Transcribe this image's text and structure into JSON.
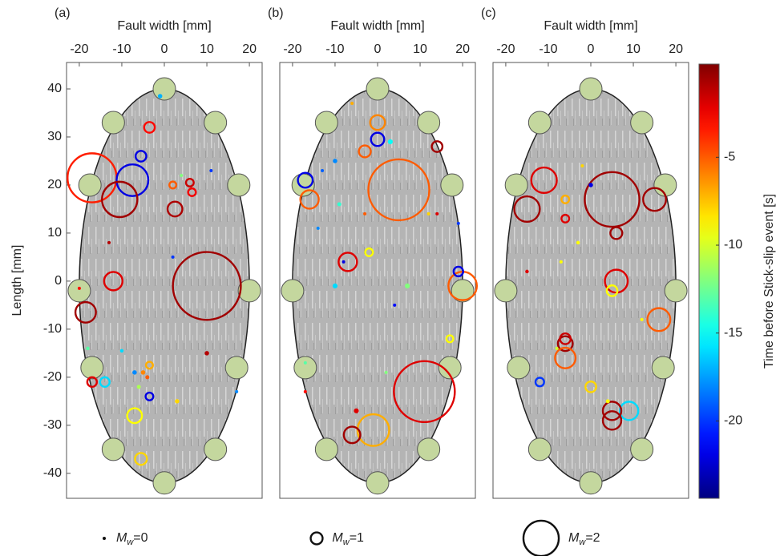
{
  "chart_data": [
    {
      "type": "scatter",
      "title": "(a)",
      "xlabel": "Fault width [mm]",
      "ylabel": "Length [mm]",
      "xlim": [
        -23,
        23
      ],
      "ylim": [
        -45.2,
        45.5
      ],
      "xticks": [
        -20,
        -10,
        0,
        10,
        20
      ],
      "yticks": [
        40,
        30,
        20,
        10,
        0,
        -10,
        -20,
        -30,
        -40
      ],
      "x": [
        -17,
        -7.5,
        -10.5,
        10,
        -12,
        -18.5,
        2.5,
        -3.5,
        -5.5,
        -7,
        -5.5,
        -17,
        -14,
        6,
        6.5,
        -3.5,
        -3.5,
        2,
        10,
        -1,
        -7,
        -5,
        3,
        -20,
        -18,
        -10,
        4,
        11,
        -6,
        -4,
        17,
        -13,
        2
      ],
      "values": [
        21.5,
        21,
        17,
        -1,
        0,
        -6.5,
        15,
        32,
        26,
        -28,
        -37,
        -21,
        -21,
        20.5,
        18.5,
        -24,
        -17.5,
        20,
        -15,
        38.5,
        -19,
        -19,
        -25,
        -1.5,
        -14,
        -14.5,
        22,
        23,
        -22,
        -20,
        -23,
        8,
        5
      ],
      "magnitude": [
        2.3,
        1.9,
        2.0,
        2.6,
        1.4,
        1.5,
        1.2,
        0.9,
        0.9,
        1.2,
        1.0,
        0.8,
        0.8,
        0.6,
        0.6,
        0.6,
        0.5,
        0.5,
        0.3,
        0.3,
        0.3,
        0.3,
        0.3,
        0,
        0.1,
        0.1,
        0,
        0,
        0.2,
        0.2,
        0,
        0,
        0
      ],
      "time": [
        -3.5,
        -22,
        -0.5,
        -0.5,
        -2,
        -0.5,
        -0.8,
        -3,
        -22,
        -9,
        -8,
        -2,
        -16,
        -1.5,
        -2.5,
        -22,
        -7,
        -5,
        -1,
        -17,
        -18,
        -6,
        -8,
        -3,
        -13,
        -16,
        -12,
        -20,
        -11,
        -5,
        -18,
        -1,
        -20
      ]
    },
    {
      "type": "scatter",
      "title": "(b)",
      "xlabel": "Fault width [mm]",
      "xlim": [
        -23,
        23
      ],
      "ylim": [
        -45.2,
        45.5
      ],
      "xticks": [
        -20,
        -10,
        0,
        10,
        20
      ],
      "x": [
        5,
        11,
        -16,
        -17,
        0,
        0,
        -3,
        14,
        -7,
        -2,
        20,
        19,
        7,
        -1,
        -6,
        17,
        -5,
        -10,
        3,
        -10,
        -9,
        14,
        12,
        -3,
        19,
        -14,
        -8,
        4,
        2,
        -17,
        -17,
        -13,
        -6
      ],
      "values": [
        19,
        -23,
        17,
        21,
        33,
        29.5,
        27,
        28,
        4,
        6,
        -1,
        2,
        -1,
        -31,
        -32,
        -12,
        -27,
        -1,
        29,
        25,
        16,
        14,
        14,
        14,
        12,
        11,
        4,
        -5,
        -19,
        -17,
        -23,
        23,
        37
      ],
      "magnitude": [
        2.5,
        2.5,
        1.4,
        1.2,
        1.2,
        1.1,
        1.0,
        0.9,
        1.4,
        0.6,
        1.8,
        0.8,
        0.4,
        1.9,
        1.3,
        0.5,
        0.4,
        0.4,
        0.4,
        0.3,
        0.2,
        0,
        0,
        0,
        0,
        0,
        0,
        0,
        0,
        0,
        0,
        0,
        0
      ],
      "time": [
        -5,
        -2,
        -5,
        -22,
        -6,
        -22,
        -5,
        -0.5,
        -2,
        -9,
        -5,
        -22,
        -12,
        -7,
        -0.5,
        -9,
        -2,
        -16,
        -15,
        -18,
        -14,
        -2,
        -8,
        -5,
        -20,
        -18,
        -22,
        -21,
        -12,
        -13,
        -3,
        -19,
        -7
      ]
    },
    {
      "type": "scatter",
      "title": "(c)",
      "xlabel": "Fault width [mm]",
      "xlim": [
        -23,
        23
      ],
      "ylim": [
        -45.2,
        45.5
      ],
      "xticks": [
        -20,
        -10,
        0,
        10,
        20
      ],
      "x": [
        5,
        15,
        -11,
        -15,
        -6,
        0,
        -6,
        6,
        6,
        5,
        16,
        -6,
        -6,
        -6,
        -12,
        0,
        9,
        5,
        5,
        -15,
        -3,
        -7,
        4,
        12,
        -2,
        -8
      ],
      "values": [
        17,
        17,
        21,
        15,
        17,
        20,
        13,
        10,
        0,
        -2,
        -8,
        -13,
        -12,
        -16,
        -21,
        -22,
        -27,
        -27,
        -29,
        2,
        8,
        4,
        -25,
        -8,
        24,
        -14
      ],
      "magnitude": [
        2.4,
        1.6,
        1.7,
        1.7,
        0.6,
        0.3,
        0.6,
        1.0,
        1.6,
        0.9,
        1.6,
        1.2,
        0.9,
        1.5,
        0.7,
        0.9,
        1.4,
        1.4,
        1.4,
        0.1,
        0.1,
        0,
        0.2,
        0,
        0,
        0
      ],
      "time": [
        -0.5,
        -0.5,
        -2,
        -0.5,
        -7,
        -22,
        -2,
        -0.5,
        -2,
        -9,
        -5,
        -0.5,
        -1.5,
        -5,
        -20,
        -8,
        -16,
        -0.5,
        -0.5,
        -2,
        -9,
        -9,
        -9,
        -9,
        -8,
        -10
      ]
    }
  ],
  "colorbar": {
    "label": "Time before Stick-slip event [s]",
    "lim": [
      -24.4,
      0.3
    ],
    "ticks": [
      -5,
      -10,
      -15,
      -20
    ],
    "colormap": "jet"
  },
  "legend": {
    "items": [
      {
        "symbol": "M",
        "subscript": "w",
        "sign": "=",
        "value": 0
      },
      {
        "symbol": "M",
        "subscript": "w",
        "sign": "=",
        "value": 1
      },
      {
        "symbol": "M",
        "subscript": "w",
        "sign": "=",
        "value": 2
      }
    ]
  }
}
